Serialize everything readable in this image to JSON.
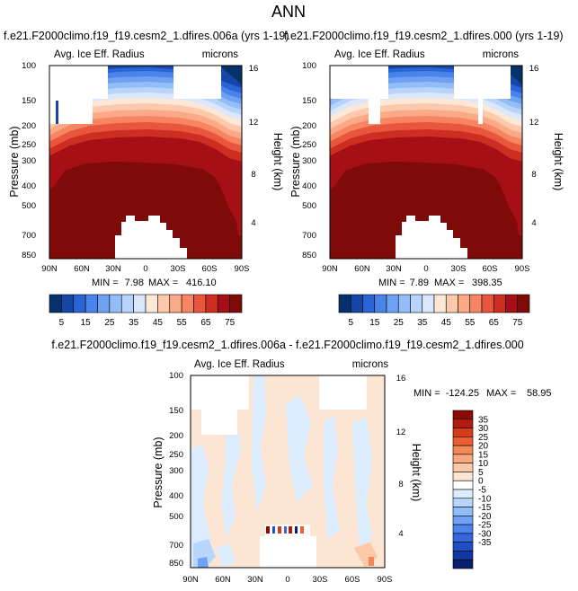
{
  "page": {
    "title": "ANN"
  },
  "colors": {
    "seq": [
      "#08306b",
      "#1647a6",
      "#2a64d6",
      "#4a83ea",
      "#6ea1f2",
      "#93bdf7",
      "#b8d4fa",
      "#dbe8fc",
      "#fde8d8",
      "#fcc9ac",
      "#fba986",
      "#f78563",
      "#e8573d",
      "#cc2f22",
      "#a50f15",
      "#7f0a0a"
    ],
    "div": [
      "#08206e",
      "#1237a0",
      "#1f4fc2",
      "#3368dc",
      "#4d84ee",
      "#6fa1f6",
      "#93bdfa",
      "#b8d6fc",
      "#dbecfe",
      "#ffffff",
      "#fde5d3",
      "#fbc8a8",
      "#f9a97d",
      "#f58656",
      "#ec5f33",
      "#d83a1a",
      "#b21c0e",
      "#8b0c06"
    ]
  },
  "chart_data": [
    {
      "type": "heatmap",
      "title": "f.e21.F2000climo.f19_f19.cesm2_1.dfires.006a (yrs 1-19)",
      "left_label": "Avg. Ice Eff. Radius",
      "right_label": "microns",
      "xlabel": "",
      "ylabel": "Pressure (mb)",
      "y2label": "Height (km)",
      "xticks": [
        "90N",
        "60N",
        "30N",
        "0",
        "30S",
        "60S",
        "90S"
      ],
      "yticks": [
        "100",
        "150",
        "200",
        "250",
        "300",
        "400",
        "500",
        "700",
        "850"
      ],
      "y2ticks": [
        "16",
        "12",
        "8",
        "4"
      ],
      "min_label": "MIN =",
      "min": "7.98",
      "max_label": "MAX =",
      "max": "416.10"
    },
    {
      "type": "heatmap",
      "title": "f.e21.F2000climo.f19_f19.cesm2_1.dfires.000 (yrs 1-19)",
      "left_label": "Avg. Ice Eff. Radius",
      "right_label": "microns",
      "xlabel": "",
      "ylabel": "Pressure (mb)",
      "y2label": "Height (km)",
      "xticks": [
        "90N",
        "60N",
        "30N",
        "0",
        "30S",
        "60S",
        "90S"
      ],
      "yticks": [
        "100",
        "150",
        "200",
        "250",
        "300",
        "400",
        "500",
        "700",
        "850"
      ],
      "y2ticks": [
        "16",
        "12",
        "8",
        "4"
      ],
      "min_label": "MIN =",
      "min": "7.89",
      "max_label": "MAX =",
      "max": "398.35"
    },
    {
      "type": "heatmap",
      "title": "f.e21.F2000climo.f19_f19.cesm2_1.dfires.006a - f.e21.F2000climo.f19_f19.cesm2_1.dfires.000",
      "left_label": "Avg. Ice Eff. Radius",
      "right_label": "microns",
      "xlabel": "",
      "ylabel": "Pressure (mb)",
      "y2label": "Height (km)",
      "xticks": [
        "90N",
        "60N",
        "30N",
        "0",
        "30S",
        "60S",
        "90S"
      ],
      "yticks": [
        "100",
        "150",
        "200",
        "250",
        "300",
        "400",
        "500",
        "700",
        "850"
      ],
      "y2ticks": [
        "16",
        "12",
        "8",
        "4"
      ],
      "min_label": "MIN =",
      "min": "-124.25",
      "max_label": "MAX =",
      "max": "58.95"
    }
  ],
  "colorbars": {
    "seq_labels": [
      "5",
      "15",
      "25",
      "35",
      "45",
      "55",
      "65",
      "75"
    ],
    "div_labels": [
      "35",
      "30",
      "25",
      "20",
      "15",
      "10",
      "5",
      "0",
      "-5",
      "-10",
      "-15",
      "-20",
      "-25",
      "-30",
      "-35"
    ]
  }
}
